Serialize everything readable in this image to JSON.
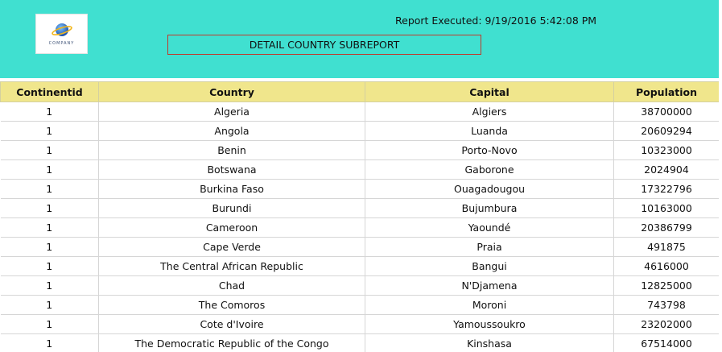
{
  "header": {
    "logo_text": "COMPANY",
    "report_executed": "Report Executed: 9/19/2016 5:42:08 PM",
    "title": "DETAIL COUNTRY SUBREPORT"
  },
  "table": {
    "columns": [
      "Continentid",
      "Country",
      "Capital",
      "Population"
    ],
    "rows": [
      [
        "1",
        "Algeria",
        "Algiers",
        "38700000"
      ],
      [
        "1",
        "Angola",
        "Luanda",
        "20609294"
      ],
      [
        "1",
        "Benin",
        "Porto-Novo",
        "10323000"
      ],
      [
        "1",
        "Botswana",
        "Gaborone",
        "2024904"
      ],
      [
        "1",
        "Burkina Faso",
        "Ouagadougou",
        "17322796"
      ],
      [
        "1",
        "Burundi",
        "Bujumbura",
        "10163000"
      ],
      [
        "1",
        "Cameroon",
        "Yaoundé",
        "20386799"
      ],
      [
        "1",
        "Cape Verde",
        "Praia",
        "491875"
      ],
      [
        "1",
        "The Central African Republic",
        "Bangui",
        "4616000"
      ],
      [
        "1",
        "Chad",
        "N'Djamena",
        "12825000"
      ],
      [
        "1",
        "The Comoros",
        "Moroni",
        "743798"
      ],
      [
        "1",
        "Cote d'Ivoire",
        "Yamoussoukro",
        "23202000"
      ],
      [
        "1",
        "The Democratic Republic of the Congo",
        "Kinshasa",
        "67514000"
      ]
    ]
  },
  "colors": {
    "header_background": "#40e0d0",
    "table_header_background": "#f0e68c",
    "title_border": "#c0392b"
  }
}
